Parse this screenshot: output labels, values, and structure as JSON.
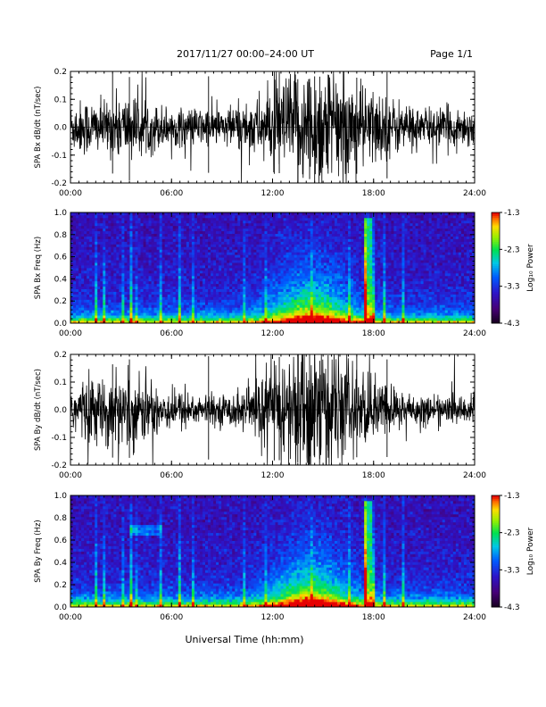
{
  "header": {
    "title": "2017/11/27  00:00–24:00 UT",
    "page": "Page 1/1"
  },
  "footer": {
    "xlabel": "Universal Time (hh:mm)"
  },
  "colorbar": {
    "label": "Log₁₀ Power",
    "ticks": [
      "-1.3",
      "-2.3",
      "-3.3",
      "-4.3"
    ],
    "range": [
      -4.3,
      -1.3
    ]
  },
  "chart_data": [
    {
      "type": "line",
      "ylabel": "SPA Bx dB/dt (nT/sec)",
      "xlim": [
        "00:00",
        "24:00"
      ],
      "xticks": [
        "00:00",
        "06:00",
        "12:00",
        "18:00",
        "24:00"
      ],
      "ylim": [
        -0.2,
        0.2
      ],
      "yticks": [
        "0.2",
        "0.1",
        "0.0",
        "-0.1",
        "-0.2"
      ],
      "envelope": {
        "hours": [
          0,
          1,
          2,
          3,
          4,
          5,
          6,
          7,
          8,
          9,
          10,
          11,
          12,
          13,
          14,
          15,
          16,
          17,
          18,
          19,
          20,
          21,
          22,
          23,
          24
        ],
        "amplitude": [
          0.05,
          0.06,
          0.05,
          0.07,
          0.06,
          0.05,
          0.04,
          0.04,
          0.04,
          0.04,
          0.05,
          0.06,
          0.08,
          0.11,
          0.12,
          0.13,
          0.11,
          0.09,
          0.08,
          0.06,
          0.05,
          0.04,
          0.04,
          0.04,
          0.04
        ]
      }
    },
    {
      "type": "heatmap",
      "ylabel": "SPA Bx Freq (Hz)",
      "xlim": [
        "00:00",
        "24:00"
      ],
      "xticks": [
        "00:00",
        "06:00",
        "12:00",
        "18:00",
        "24:00"
      ],
      "ylim": [
        0.0,
        1.0
      ],
      "yticks": [
        "1.0",
        "0.8",
        "0.6",
        "0.4",
        "0.2",
        "0.0"
      ],
      "zlabel": "Log₁₀ Power",
      "zlim": [
        -4.3,
        -1.3
      ]
    },
    {
      "type": "line",
      "ylabel": "SPA By dB/dt (nT/sec)",
      "xlim": [
        "00:00",
        "24:00"
      ],
      "xticks": [
        "00:00",
        "06:00",
        "12:00",
        "18:00",
        "24:00"
      ],
      "ylim": [
        -0.2,
        0.2
      ],
      "yticks": [
        "0.2",
        "0.1",
        "0.0",
        "-0.1",
        "-0.2"
      ],
      "envelope": {
        "hours": [
          0,
          1,
          2,
          3,
          4,
          5,
          6,
          7,
          8,
          9,
          10,
          11,
          12,
          13,
          14,
          15,
          16,
          17,
          18,
          19,
          20,
          21,
          22,
          23,
          24
        ],
        "amplitude": [
          0.05,
          0.07,
          0.06,
          0.08,
          0.07,
          0.06,
          0.04,
          0.04,
          0.03,
          0.03,
          0.04,
          0.06,
          0.09,
          0.12,
          0.15,
          0.14,
          0.11,
          0.08,
          0.07,
          0.05,
          0.04,
          0.03,
          0.03,
          0.03,
          0.03
        ]
      }
    },
    {
      "type": "heatmap",
      "ylabel": "SPA By Freq (Hz)",
      "xlim": [
        "00:00",
        "24:00"
      ],
      "xticks": [
        "00:00",
        "06:00",
        "12:00",
        "18:00",
        "24:00"
      ],
      "ylim": [
        0.0,
        1.0
      ],
      "yticks": [
        "1.0",
        "0.8",
        "0.6",
        "0.4",
        "0.2",
        "0.0"
      ],
      "zlabel": "Log₁₀ Power",
      "zlim": [
        -4.3,
        -1.3
      ]
    }
  ]
}
